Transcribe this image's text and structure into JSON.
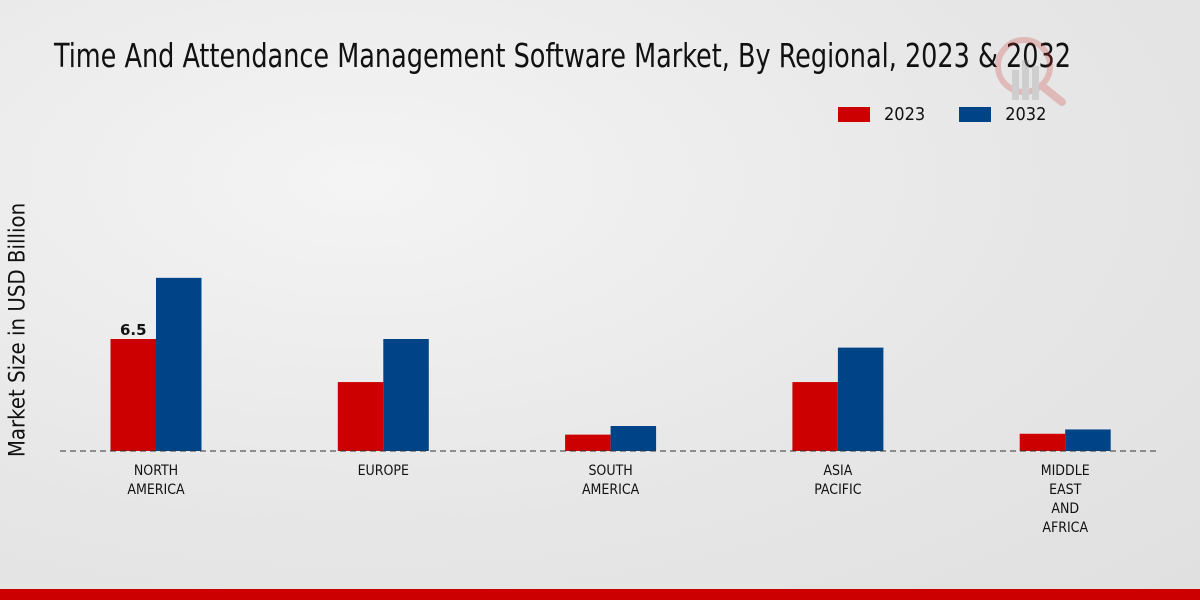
{
  "chart_data": {
    "type": "bar",
    "title": "Time And Attendance Management Software Market, By Regional, 2023 & 2032",
    "xlabel": "",
    "ylabel": "Market Size in USD Billion",
    "categories": [
      [
        "NORTH",
        "AMERICA"
      ],
      [
        "EUROPE"
      ],
      [
        "SOUTH",
        "AMERICA"
      ],
      [
        "ASIA",
        "PACIFIC"
      ],
      [
        "MIDDLE",
        "EAST",
        "AND",
        "AFRICA"
      ]
    ],
    "series": [
      {
        "name": "2023",
        "color": "#cc0000",
        "values": [
          6.5,
          4.0,
          0.95,
          4.0,
          1.0
        ]
      },
      {
        "name": "2032",
        "color": "#004488",
        "values": [
          10.05,
          6.5,
          1.45,
          6.0,
          1.25
        ]
      }
    ],
    "data_labels": [
      {
        "series": 0,
        "index": 0,
        "text": "6.5"
      }
    ],
    "ylim": [
      0,
      13
    ],
    "grid": false,
    "legend_position": "top-right"
  }
}
